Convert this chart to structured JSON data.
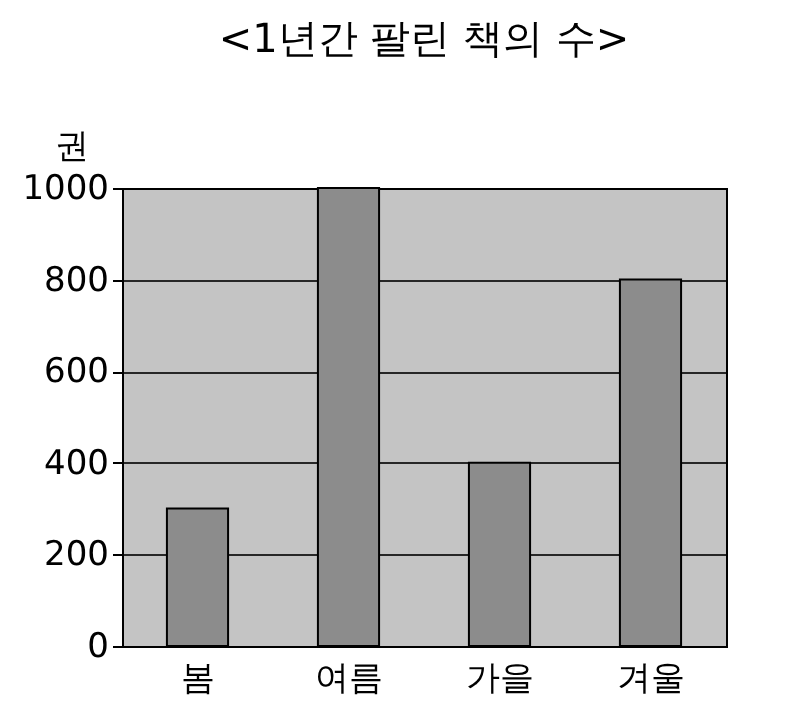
{
  "chart_data": {
    "type": "bar",
    "title": "<1년간 팔린 책의 수>",
    "ylabel": "권",
    "categories": [
      "봄",
      "여름",
      "가을",
      "겨울"
    ],
    "values": [
      300,
      1000,
      400,
      800
    ],
    "color": "#8c8c8c",
    "ylim": [
      0,
      1000
    ],
    "yticks": [
      0,
      200,
      400,
      600,
      800,
      1000
    ],
    "grid": "y"
  }
}
